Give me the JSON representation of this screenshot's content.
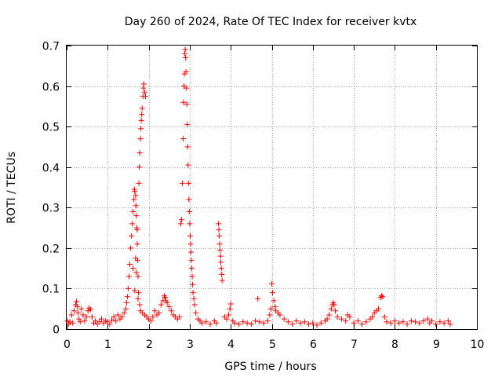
{
  "chart_data": {
    "type": "scatter",
    "title": "Day 260 of 2024, Rate Of TEC Index for receiver kvtx",
    "xlabel": "GPS time / hours",
    "ylabel": "ROTI / TECUs",
    "xlim": [
      0,
      10
    ],
    "ylim": [
      0,
      0.7
    ],
    "xticks": [
      "0",
      "1",
      "2",
      "3",
      "4",
      "5",
      "6",
      "7",
      "8",
      "9",
      "10"
    ],
    "yticks": [
      "0",
      "0.1",
      "0.2",
      "0.3",
      "0.4",
      "0.5",
      "0.6",
      "0.7"
    ],
    "grid": true,
    "marker": "+",
    "marker_color": "#ff0000",
    "series": [
      {
        "name": "ROTI",
        "points": [
          [
            0.02,
            0.02
          ],
          [
            0.05,
            0.012
          ],
          [
            0.08,
            0.018
          ],
          [
            0.12,
            0.035
          ],
          [
            0.15,
            0.015
          ],
          [
            0.18,
            0.045
          ],
          [
            0.22,
            0.06
          ],
          [
            0.24,
            0.068
          ],
          [
            0.26,
            0.055
          ],
          [
            0.28,
            0.04
          ],
          [
            0.3,
            0.025
          ],
          [
            0.33,
            0.018
          ],
          [
            0.36,
            0.05
          ],
          [
            0.4,
            0.035
          ],
          [
            0.44,
            0.02
          ],
          [
            0.48,
            0.03
          ],
          [
            0.52,
            0.045
          ],
          [
            0.55,
            0.052
          ],
          [
            0.58,
            0.048
          ],
          [
            0.62,
            0.03
          ],
          [
            0.66,
            0.015
          ],
          [
            0.7,
            0.02
          ],
          [
            0.75,
            0.012
          ],
          [
            0.8,
            0.018
          ],
          [
            0.85,
            0.025
          ],
          [
            0.9,
            0.015
          ],
          [
            0.95,
            0.02
          ],
          [
            1.0,
            0.018
          ],
          [
            1.05,
            0.012
          ],
          [
            1.1,
            0.022
          ],
          [
            1.15,
            0.03
          ],
          [
            1.2,
            0.02
          ],
          [
            1.25,
            0.035
          ],
          [
            1.3,
            0.025
          ],
          [
            1.35,
            0.03
          ],
          [
            1.4,
            0.04
          ],
          [
            1.44,
            0.05
          ],
          [
            1.46,
            0.065
          ],
          [
            1.48,
            0.08
          ],
          [
            1.5,
            0.1
          ],
          [
            1.52,
            0.13
          ],
          [
            1.54,
            0.16
          ],
          [
            1.56,
            0.2
          ],
          [
            1.58,
            0.23
          ],
          [
            1.6,
            0.26
          ],
          [
            1.62,
            0.29
          ],
          [
            1.64,
            0.32
          ],
          [
            1.65,
            0.345
          ],
          [
            1.66,
            0.34
          ],
          [
            1.68,
            0.33
          ],
          [
            1.69,
            0.305
          ],
          [
            1.7,
            0.28
          ],
          [
            1.71,
            0.25
          ],
          [
            1.72,
            0.21
          ],
          [
            1.73,
            0.17
          ],
          [
            1.74,
            0.13
          ],
          [
            1.75,
            0.09
          ],
          [
            1.76,
            0.36
          ],
          [
            1.77,
            0.4
          ],
          [
            1.78,
            0.435
          ],
          [
            1.8,
            0.47
          ],
          [
            1.81,
            0.495
          ],
          [
            1.82,
            0.515
          ],
          [
            1.83,
            0.53
          ],
          [
            1.84,
            0.545
          ],
          [
            1.86,
            0.575
          ],
          [
            1.87,
            0.595
          ],
          [
            1.88,
            0.605
          ],
          [
            1.9,
            0.585
          ],
          [
            1.92,
            0.575
          ],
          [
            1.62,
            0.15
          ],
          [
            1.66,
            0.095
          ],
          [
            1.68,
            0.175
          ],
          [
            1.7,
            0.14
          ],
          [
            1.74,
            0.075
          ],
          [
            1.72,
            0.245
          ],
          [
            1.78,
            0.06
          ],
          [
            1.8,
            0.045
          ],
          [
            1.85,
            0.04
          ],
          [
            1.9,
            0.035
          ],
          [
            1.95,
            0.03
          ],
          [
            2.0,
            0.025
          ],
          [
            2.05,
            0.02
          ],
          [
            2.1,
            0.03
          ],
          [
            2.15,
            0.045
          ],
          [
            2.2,
            0.035
          ],
          [
            2.25,
            0.04
          ],
          [
            2.3,
            0.06
          ],
          [
            2.35,
            0.07
          ],
          [
            2.38,
            0.082
          ],
          [
            2.4,
            0.078
          ],
          [
            2.42,
            0.07
          ],
          [
            2.45,
            0.065
          ],
          [
            2.5,
            0.055
          ],
          [
            2.55,
            0.045
          ],
          [
            2.6,
            0.035
          ],
          [
            2.65,
            0.03
          ],
          [
            2.7,
            0.025
          ],
          [
            2.75,
            0.03
          ],
          [
            2.78,
            0.26
          ],
          [
            2.8,
            0.27
          ],
          [
            2.82,
            0.36
          ],
          [
            2.84,
            0.47
          ],
          [
            2.85,
            0.56
          ],
          [
            2.86,
            0.6
          ],
          [
            2.87,
            0.63
          ],
          [
            2.88,
            0.68
          ],
          [
            2.89,
            0.69
          ],
          [
            2.9,
            0.67
          ],
          [
            2.91,
            0.635
          ],
          [
            2.92,
            0.595
          ],
          [
            2.93,
            0.555
          ],
          [
            2.94,
            0.505
          ],
          [
            2.95,
            0.45
          ],
          [
            2.96,
            0.405
          ],
          [
            2.97,
            0.36
          ],
          [
            2.98,
            0.32
          ],
          [
            2.99,
            0.29
          ],
          [
            3.0,
            0.26
          ],
          [
            3.01,
            0.23
          ],
          [
            3.02,
            0.21
          ],
          [
            3.03,
            0.19
          ],
          [
            3.04,
            0.17
          ],
          [
            3.05,
            0.15
          ],
          [
            3.06,
            0.13
          ],
          [
            3.07,
            0.11
          ],
          [
            3.08,
            0.09
          ],
          [
            3.1,
            0.075
          ],
          [
            3.12,
            0.06
          ],
          [
            3.15,
            0.04
          ],
          [
            3.2,
            0.025
          ],
          [
            3.25,
            0.02
          ],
          [
            3.3,
            0.015
          ],
          [
            3.4,
            0.018
          ],
          [
            3.5,
            0.012
          ],
          [
            3.6,
            0.02
          ],
          [
            3.65,
            0.015
          ],
          [
            3.7,
            0.26
          ],
          [
            3.71,
            0.245
          ],
          [
            3.72,
            0.23
          ],
          [
            3.73,
            0.21
          ],
          [
            3.74,
            0.195
          ],
          [
            3.75,
            0.18
          ],
          [
            3.76,
            0.165
          ],
          [
            3.77,
            0.15
          ],
          [
            3.78,
            0.135
          ],
          [
            3.79,
            0.12
          ],
          [
            3.85,
            0.03
          ],
          [
            3.9,
            0.025
          ],
          [
            3.95,
            0.035
          ],
          [
            3.98,
            0.05
          ],
          [
            4.0,
            0.062
          ],
          [
            4.05,
            0.02
          ],
          [
            4.1,
            0.015
          ],
          [
            4.2,
            0.012
          ],
          [
            4.3,
            0.018
          ],
          [
            4.4,
            0.015
          ],
          [
            4.5,
            0.012
          ],
          [
            4.6,
            0.02
          ],
          [
            4.66,
            0.075
          ],
          [
            4.7,
            0.018
          ],
          [
            4.8,
            0.015
          ],
          [
            4.9,
            0.02
          ],
          [
            4.95,
            0.035
          ],
          [
            4.98,
            0.05
          ],
          [
            5.0,
            0.112
          ],
          [
            5.02,
            0.09
          ],
          [
            5.05,
            0.07
          ],
          [
            5.08,
            0.055
          ],
          [
            5.1,
            0.045
          ],
          [
            5.15,
            0.04
          ],
          [
            5.2,
            0.035
          ],
          [
            5.3,
            0.025
          ],
          [
            5.4,
            0.018
          ],
          [
            5.5,
            0.012
          ],
          [
            5.6,
            0.02
          ],
          [
            5.7,
            0.015
          ],
          [
            5.8,
            0.018
          ],
          [
            5.9,
            0.012
          ],
          [
            6.0,
            0.015
          ],
          [
            6.1,
            0.01
          ],
          [
            6.2,
            0.015
          ],
          [
            6.3,
            0.02
          ],
          [
            6.35,
            0.025
          ],
          [
            6.4,
            0.035
          ],
          [
            6.45,
            0.05
          ],
          [
            6.48,
            0.06
          ],
          [
            6.5,
            0.065
          ],
          [
            6.52,
            0.06
          ],
          [
            6.55,
            0.045
          ],
          [
            6.6,
            0.03
          ],
          [
            6.7,
            0.025
          ],
          [
            6.8,
            0.02
          ],
          [
            6.85,
            0.035
          ],
          [
            6.9,
            0.03
          ],
          [
            7.0,
            0.015
          ],
          [
            7.1,
            0.02
          ],
          [
            7.2,
            0.012
          ],
          [
            7.3,
            0.018
          ],
          [
            7.4,
            0.025
          ],
          [
            7.45,
            0.03
          ],
          [
            7.5,
            0.04
          ],
          [
            7.55,
            0.045
          ],
          [
            7.6,
            0.05
          ],
          [
            7.65,
            0.078
          ],
          [
            7.68,
            0.082
          ],
          [
            7.7,
            0.08
          ],
          [
            7.75,
            0.03
          ],
          [
            7.8,
            0.018
          ],
          [
            7.9,
            0.015
          ],
          [
            8.0,
            0.02
          ],
          [
            8.1,
            0.015
          ],
          [
            8.2,
            0.018
          ],
          [
            8.3,
            0.012
          ],
          [
            8.4,
            0.02
          ],
          [
            8.5,
            0.018
          ],
          [
            8.6,
            0.015
          ],
          [
            8.7,
            0.02
          ],
          [
            8.8,
            0.025
          ],
          [
            8.85,
            0.015
          ],
          [
            8.9,
            0.02
          ],
          [
            9.0,
            0.012
          ],
          [
            9.1,
            0.018
          ],
          [
            9.2,
            0.015
          ],
          [
            9.3,
            0.02
          ],
          [
            9.35,
            0.012
          ]
        ]
      }
    ]
  }
}
